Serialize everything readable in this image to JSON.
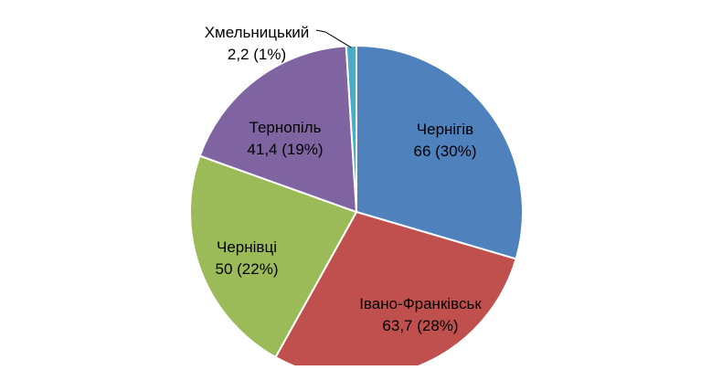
{
  "chart_data": {
    "type": "pie",
    "title": "",
    "slices": [
      {
        "name": "Чернігів",
        "value": 66,
        "percent_label": "66 (30%)",
        "color": "#4F81BD"
      },
      {
        "name": "Івано-Франківськ",
        "value": 63.7,
        "percent_label": "63,7 (28%)",
        "color": "#C0504D"
      },
      {
        "name": "Чернівці",
        "value": 50,
        "percent_label": "50 (22%)",
        "color": "#9BBB59"
      },
      {
        "name": "Тернопіль",
        "value": 41.4,
        "percent_label": "41,4 (19%)",
        "color": "#8064A2"
      },
      {
        "name": "Хмельницький",
        "value": 2.2,
        "percent_label": "2,2 (1%)",
        "color": "#4BACC6"
      }
    ]
  }
}
